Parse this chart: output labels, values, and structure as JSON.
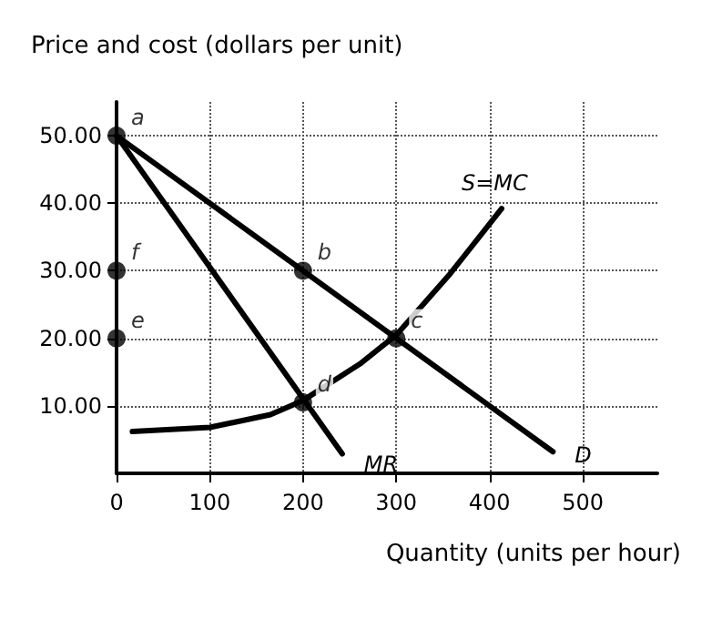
{
  "chart_data": {
    "type": "line",
    "ylabel": "Price and cost (dollars per unit)",
    "xlabel": "Quantity (units per hour)",
    "xlim": [
      0,
      580
    ],
    "xticks": [
      0,
      100,
      200,
      300,
      400,
      500
    ],
    "ylim": [
      0,
      55
    ],
    "yticks": [
      {
        "value": 10,
        "label": "10.00"
      },
      {
        "value": 20,
        "label": "20.00"
      },
      {
        "value": 30,
        "label": "30.00"
      },
      {
        "value": 40,
        "label": "40.00"
      },
      {
        "value": 50,
        "label": "50.00"
      }
    ],
    "grid": true,
    "marker": "none",
    "line_style": "solid",
    "series": [
      {
        "name": "D",
        "color": "#000000",
        "x": [
          0,
          468
        ],
        "values": [
          50,
          3.2
        ]
      },
      {
        "name": "MR",
        "color": "#000000",
        "x": [
          0,
          242
        ],
        "values": [
          50,
          2.9
        ]
      },
      {
        "name": "S=MC",
        "color": "#000000",
        "x": [
          17,
          100,
          165,
          200,
          261,
          300,
          358,
          413
        ],
        "values": [
          6.2,
          6.8,
          8.7,
          10.8,
          16.2,
          20.5,
          29.6,
          39.2
        ]
      },
      {
        "type": "scatter",
        "marker": "circle",
        "color": "#000000",
        "x": [
          0,
          200,
          300,
          200,
          0,
          0
        ],
        "values": [
          50,
          30,
          20,
          10.5,
          20,
          30
        ]
      }
    ],
    "annotations": [
      {
        "text": "a",
        "x": 0,
        "y": 50
      },
      {
        "text": "b",
        "x": 200,
        "y": 30
      },
      {
        "text": "c",
        "x": 300,
        "y": 20
      },
      {
        "text": "d",
        "x": 200,
        "y": 10.5
      },
      {
        "text": "e",
        "x": 0,
        "y": 20
      },
      {
        "text": "f",
        "x": 0,
        "y": 30
      }
    ]
  }
}
